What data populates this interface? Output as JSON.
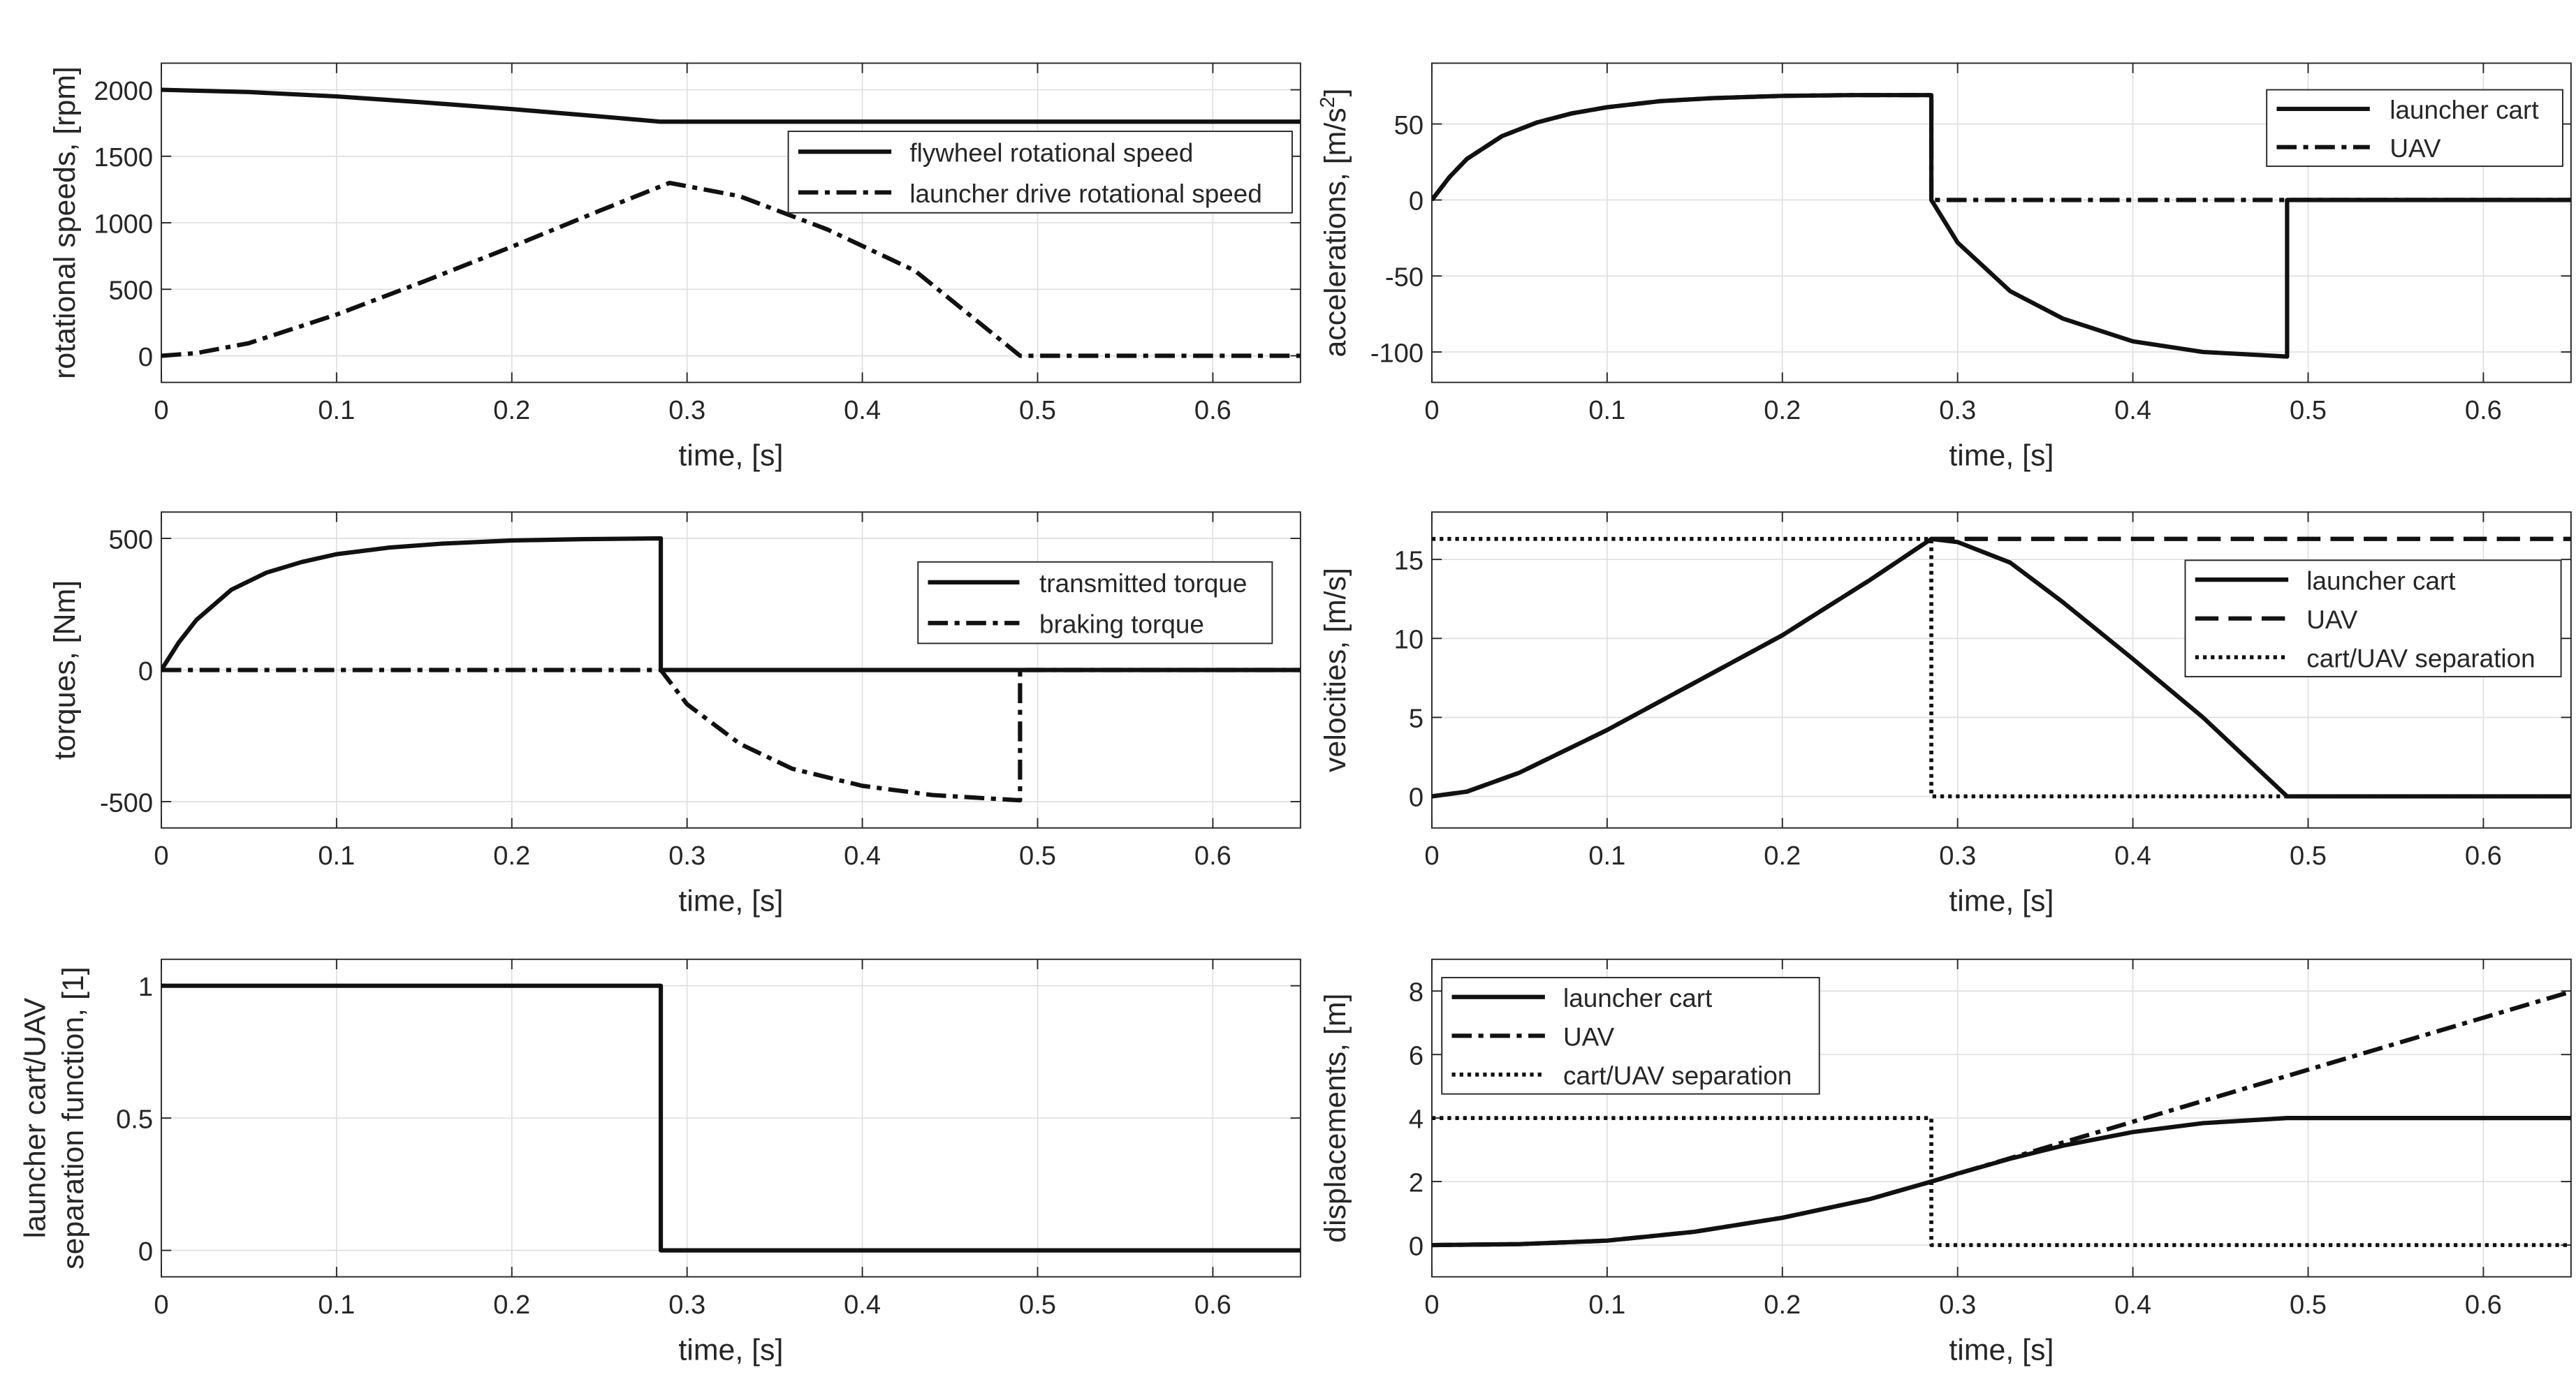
{
  "chart_data": [
    {
      "id": "rotational-speeds",
      "type": "line",
      "xlabel": "time, [s]",
      "ylabel": "rotational speeds, [rpm]",
      "xlim": [
        0,
        0.65
      ],
      "ylim": [
        -200,
        2200
      ],
      "xticks": [
        0,
        0.1,
        0.2,
        0.3,
        0.4,
        0.5,
        0.6
      ],
      "xtick_labels": [
        "0",
        "0.1",
        "0.2",
        "0.3",
        "0.4",
        "0.5",
        "0.6"
      ],
      "yticks": [
        0,
        500,
        1000,
        1500,
        2000
      ],
      "ytick_labels": [
        "0",
        "500",
        "1000",
        "1500",
        "2000"
      ],
      "grid": true,
      "legend_position": "right",
      "series": [
        {
          "name": "flywheel rotational speed",
          "style": "solid",
          "x": [
            0,
            0.05,
            0.1,
            0.15,
            0.2,
            0.25,
            0.285,
            0.65
          ],
          "y": [
            2000,
            1983,
            1950,
            1905,
            1855,
            1800,
            1760,
            1760
          ]
        },
        {
          "name": "launcher drive rotational speed",
          "style": "dashdot",
          "x": [
            0,
            0.02,
            0.05,
            0.1,
            0.15,
            0.2,
            0.25,
            0.29,
            0.33,
            0.38,
            0.43,
            0.49,
            0.65
          ],
          "y": [
            0,
            20,
            95,
            310,
            560,
            820,
            1090,
            1300,
            1200,
            950,
            640,
            0,
            0
          ]
        }
      ]
    },
    {
      "id": "accelerations",
      "type": "line",
      "xlabel": "time, [s]",
      "ylabel": "accelerations, [m/s",
      "ylabel_sup": "2",
      "ylabel_end": "]",
      "xlim": [
        0,
        0.65
      ],
      "ylim": [
        -120,
        90
      ],
      "xticks": [
        0,
        0.1,
        0.2,
        0.3,
        0.4,
        0.5,
        0.6
      ],
      "xtick_labels": [
        "0",
        "0.1",
        "0.2",
        "0.3",
        "0.4",
        "0.5",
        "0.6"
      ],
      "yticks": [
        -100,
        -50,
        0,
        50
      ],
      "ytick_labels": [
        "-100",
        "-50",
        "0",
        "50"
      ],
      "grid": true,
      "legend_position": "top-right",
      "series": [
        {
          "name": "launcher cart",
          "style": "solid",
          "x": [
            0,
            0.01,
            0.02,
            0.04,
            0.06,
            0.08,
            0.1,
            0.13,
            0.16,
            0.2,
            0.24,
            0.285,
            0.285,
            0.3,
            0.33,
            0.36,
            0.4,
            0.44,
            0.488,
            0.488,
            0.65
          ],
          "y": [
            0,
            15,
            27,
            42,
            51,
            57,
            61,
            65,
            67,
            68.5,
            69,
            69,
            0,
            -28,
            -60,
            -78,
            -93,
            -100,
            -103,
            0,
            0
          ]
        },
        {
          "name": "UAV",
          "style": "dashdot",
          "x": [
            0,
            0.01,
            0.02,
            0.04,
            0.06,
            0.08,
            0.1,
            0.13,
            0.16,
            0.2,
            0.24,
            0.285,
            0.285,
            0.65
          ],
          "y": [
            0,
            15,
            27,
            42,
            51,
            57,
            61,
            65,
            67,
            68.5,
            69,
            69,
            0,
            0
          ]
        }
      ]
    },
    {
      "id": "torques",
      "type": "line",
      "xlabel": "time, [s]",
      "ylabel": "torques, [Nm]",
      "xlim": [
        0,
        0.65
      ],
      "ylim": [
        -600,
        600
      ],
      "xticks": [
        0,
        0.1,
        0.2,
        0.3,
        0.4,
        0.5,
        0.6
      ],
      "xtick_labels": [
        "0",
        "0.1",
        "0.2",
        "0.3",
        "0.4",
        "0.5",
        "0.6"
      ],
      "yticks": [
        -500,
        0,
        500
      ],
      "ytick_labels": [
        "-500",
        "0",
        "500"
      ],
      "grid": true,
      "legend_position": "right",
      "series": [
        {
          "name": "transmitted torque",
          "style": "solid",
          "x": [
            0,
            0.01,
            0.02,
            0.04,
            0.06,
            0.08,
            0.1,
            0.13,
            0.16,
            0.2,
            0.24,
            0.285,
            0.285,
            0.65
          ],
          "y": [
            0,
            105,
            190,
            305,
            370,
            410,
            440,
            465,
            480,
            492,
            497,
            500,
            0,
            0
          ]
        },
        {
          "name": "braking torque",
          "style": "dashdot",
          "x": [
            0,
            0.285,
            0.3,
            0.33,
            0.36,
            0.4,
            0.44,
            0.49,
            0.49,
            0.65
          ],
          "y": [
            0,
            0,
            -130,
            -280,
            -375,
            -440,
            -475,
            -495,
            0,
            0
          ]
        }
      ]
    },
    {
      "id": "velocities",
      "type": "line",
      "xlabel": "time, [s]",
      "ylabel": "velocities, [m/s]",
      "xlim": [
        0,
        0.65
      ],
      "ylim": [
        -2,
        18
      ],
      "xticks": [
        0,
        0.1,
        0.2,
        0.3,
        0.4,
        0.5,
        0.6
      ],
      "xtick_labels": [
        "0",
        "0.1",
        "0.2",
        "0.3",
        "0.4",
        "0.5",
        "0.6"
      ],
      "yticks": [
        0,
        5,
        10,
        15
      ],
      "ytick_labels": [
        "0",
        "5",
        "10",
        "15"
      ],
      "grid": true,
      "legend_position": "right",
      "series": [
        {
          "name": "launcher cart",
          "style": "solid",
          "x": [
            0,
            0.02,
            0.05,
            0.1,
            0.15,
            0.2,
            0.25,
            0.285,
            0.3,
            0.33,
            0.36,
            0.4,
            0.44,
            0.488,
            0.65
          ],
          "y": [
            0,
            0.3,
            1.5,
            4.2,
            7.2,
            10.2,
            13.7,
            16.3,
            16.1,
            14.8,
            12.3,
            8.7,
            5.0,
            0,
            0
          ]
        },
        {
          "name": "UAV",
          "style": "dashed",
          "x": [
            0,
            0.02,
            0.05,
            0.1,
            0.15,
            0.2,
            0.25,
            0.285,
            0.65
          ],
          "y": [
            0,
            0.3,
            1.5,
            4.2,
            7.2,
            10.2,
            13.7,
            16.3,
            16.3
          ]
        },
        {
          "name": "cart/UAV separation",
          "style": "dotted",
          "x": [
            0,
            0.285,
            0.285,
            0.65
          ],
          "y": [
            16.3,
            16.3,
            0,
            0
          ]
        }
      ]
    },
    {
      "id": "separation-function",
      "type": "line",
      "xlabel": "time, [s]",
      "ylabel_lines": [
        "launcher cart/UAV",
        "separation function, [1]"
      ],
      "xlim": [
        0,
        0.65
      ],
      "ylim": [
        -0.1,
        1.1
      ],
      "xticks": [
        0,
        0.1,
        0.2,
        0.3,
        0.4,
        0.5,
        0.6
      ],
      "xtick_labels": [
        "0",
        "0.1",
        "0.2",
        "0.3",
        "0.4",
        "0.5",
        "0.6"
      ],
      "yticks": [
        0,
        0.5,
        1
      ],
      "ytick_labels": [
        "0",
        "0.5",
        "1"
      ],
      "grid": true,
      "series": [
        {
          "name": "separation function",
          "style": "solid",
          "x": [
            0,
            0.285,
            0.285,
            0.65
          ],
          "y": [
            1,
            1,
            0,
            0
          ]
        }
      ]
    },
    {
      "id": "displacements",
      "type": "line",
      "xlabel": "time, [s]",
      "ylabel": "displacements, [m]",
      "xlim": [
        0,
        0.65
      ],
      "ylim": [
        -1,
        9
      ],
      "xticks": [
        0,
        0.1,
        0.2,
        0.3,
        0.4,
        0.5,
        0.6
      ],
      "xtick_labels": [
        "0",
        "0.1",
        "0.2",
        "0.3",
        "0.4",
        "0.5",
        "0.6"
      ],
      "yticks": [
        0,
        2,
        4,
        6,
        8
      ],
      "ytick_labels": [
        "0",
        "2",
        "4",
        "6",
        "8"
      ],
      "grid": true,
      "legend_position": "top-left",
      "series": [
        {
          "name": "launcher cart",
          "style": "solid",
          "x": [
            0,
            0.05,
            0.1,
            0.15,
            0.2,
            0.25,
            0.285,
            0.3,
            0.33,
            0.36,
            0.4,
            0.44,
            0.488,
            0.65
          ],
          "y": [
            0,
            0.03,
            0.14,
            0.42,
            0.86,
            1.45,
            2.0,
            2.25,
            2.72,
            3.13,
            3.56,
            3.84,
            4.0,
            4.0
          ]
        },
        {
          "name": "UAV",
          "style": "dashdot",
          "x": [
            0,
            0.05,
            0.1,
            0.15,
            0.2,
            0.25,
            0.285,
            0.65
          ],
          "y": [
            0,
            0.03,
            0.14,
            0.42,
            0.86,
            1.45,
            2.0,
            7.98
          ]
        },
        {
          "name": "cart/UAV separation",
          "style": "dotted",
          "x": [
            0,
            0.285,
            0.285,
            0.65
          ],
          "y": [
            4,
            4,
            0,
            0
          ]
        }
      ]
    }
  ]
}
